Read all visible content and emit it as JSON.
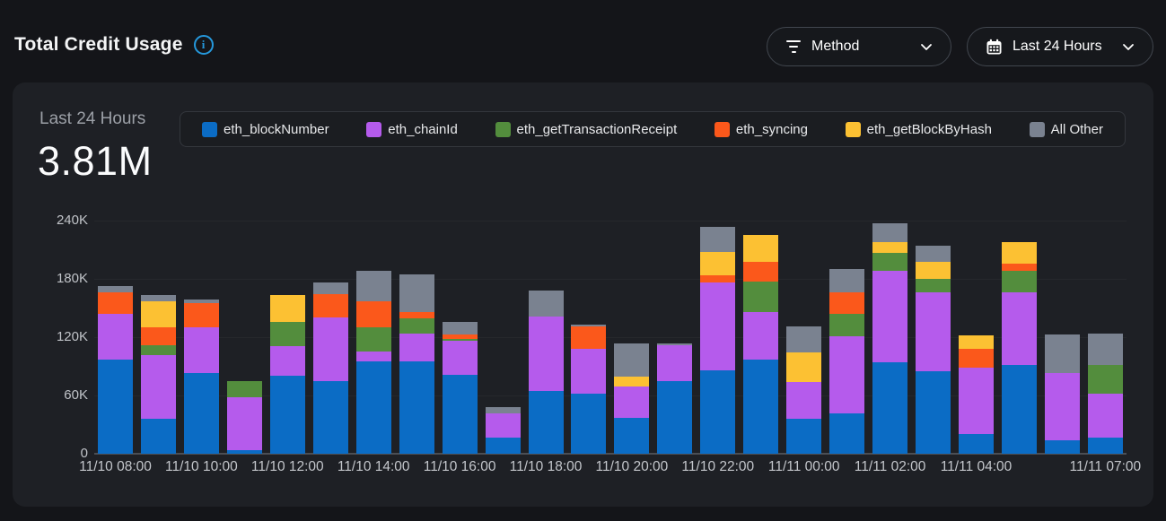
{
  "header": {
    "title": "Total Credit Usage",
    "info_icon": "info-circle",
    "method_filter": {
      "label": "Method",
      "icon": "filter"
    },
    "time_range": {
      "label": "Last 24 Hours",
      "icon": "calendar"
    }
  },
  "card": {
    "period_label": "Last 24 Hours",
    "total_value": "3.81M"
  },
  "colors": {
    "page_bg": "#141519",
    "card_bg": "#1e2025",
    "info_accent": "#2598dc",
    "grid_line": "#26282c",
    "axis_line": "#4b4e54"
  },
  "chart_data": {
    "type": "bar",
    "stacked": true,
    "title": "Total Credit Usage",
    "subtitle": "Last 24 Hours",
    "total_display": "3.81M",
    "unit": "credits, values in thousands (K)",
    "grid": true,
    "legend_position": "top",
    "ylim_k": [
      0,
      240
    ],
    "x": [
      "11/10 08:00",
      "11/10 09:00",
      "11/10 10:00",
      "11/10 11:00",
      "11/10 12:00",
      "11/10 13:00",
      "11/10 14:00",
      "11/10 15:00",
      "11/10 16:00",
      "11/10 17:00",
      "11/10 18:00",
      "11/10 19:00",
      "11/10 20:00",
      "11/10 21:00",
      "11/10 22:00",
      "11/10 23:00",
      "11/11 00:00",
      "11/11 01:00",
      "11/11 02:00",
      "11/11 03:00",
      "11/11 04:00",
      "11/11 05:00",
      "11/11 06:00",
      "11/11 07:00"
    ],
    "series": [
      {
        "name": "eth_blockNumber",
        "color": "#0b6cc5",
        "values_k": [
          97,
          36,
          83,
          4,
          80,
          75,
          95,
          95,
          81,
          17,
          65,
          62,
          37,
          75,
          86,
          97,
          36,
          42,
          94,
          85,
          20,
          91,
          14,
          17
        ]
      },
      {
        "name": "eth_chainId",
        "color": "#b55bec",
        "values_k": [
          47,
          66,
          47,
          54,
          31,
          65,
          10,
          29,
          35,
          25,
          76,
          46,
          32,
          37,
          90,
          49,
          38,
          79,
          94,
          81,
          69,
          75,
          69,
          45
        ]
      },
      {
        "name": "eth_getTransactionReceipt",
        "color": "#538d3d",
        "values_k": [
          0,
          10,
          0,
          17,
          25,
          0,
          25,
          15,
          2,
          0,
          0,
          0,
          0,
          0,
          0,
          31,
          0,
          23,
          19,
          14,
          0,
          22,
          0,
          29
        ]
      },
      {
        "name": "eth_syncing",
        "color": "#fb581b",
        "values_k": [
          22,
          18,
          25,
          0,
          0,
          24,
          27,
          7,
          5,
          0,
          0,
          23,
          0,
          0,
          8,
          21,
          0,
          22,
          0,
          0,
          19,
          8,
          0,
          0
        ]
      },
      {
        "name": "eth_getBlockByHash",
        "color": "#fcc133",
        "values_k": [
          0,
          27,
          0,
          0,
          27,
          0,
          0,
          0,
          0,
          0,
          0,
          0,
          10,
          0,
          24,
          27,
          30,
          0,
          11,
          18,
          14,
          22,
          0,
          0
        ]
      },
      {
        "name": "All Other",
        "color": "#7a8290",
        "values_k": [
          7,
          6,
          4,
          0,
          0,
          12,
          31,
          39,
          13,
          6,
          27,
          2,
          35,
          2,
          26,
          0,
          27,
          24,
          19,
          16,
          0,
          0,
          40,
          33
        ]
      }
    ],
    "y_axis": {
      "ticks": [
        {
          "value_k": 0,
          "label": "0"
        },
        {
          "value_k": 60,
          "label": "60K"
        },
        {
          "value_k": 120,
          "label": "120K"
        },
        {
          "value_k": 180,
          "label": "180K"
        },
        {
          "value_k": 240,
          "label": "240K"
        }
      ]
    },
    "x_axis": {
      "ticks": [
        {
          "index": 0,
          "label": "11/10 08:00"
        },
        {
          "index": 2,
          "label": "11/10 10:00"
        },
        {
          "index": 4,
          "label": "11/10 12:00"
        },
        {
          "index": 6,
          "label": "11/10 14:00"
        },
        {
          "index": 8,
          "label": "11/10 16:00"
        },
        {
          "index": 10,
          "label": "11/10 18:00"
        },
        {
          "index": 12,
          "label": "11/10 20:00"
        },
        {
          "index": 14,
          "label": "11/10 22:00"
        },
        {
          "index": 16,
          "label": "11/11 00:00"
        },
        {
          "index": 18,
          "label": "11/11 02:00"
        },
        {
          "index": 20,
          "label": "11/11 04:00"
        },
        {
          "index": 23,
          "label": "11/11 07:00"
        }
      ]
    }
  }
}
